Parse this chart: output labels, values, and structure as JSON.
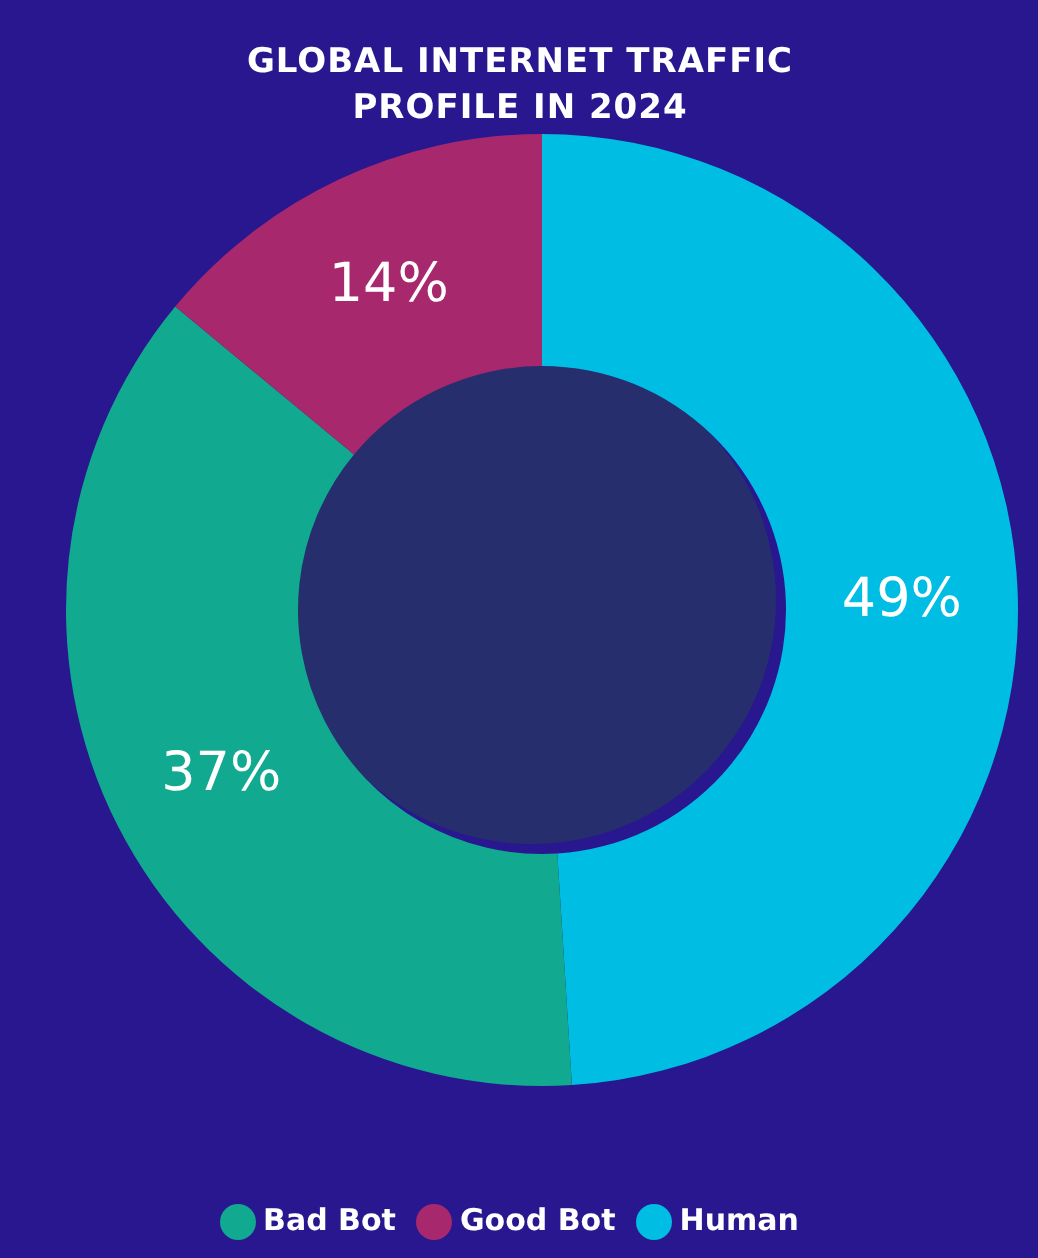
{
  "chart_data": {
    "type": "donut",
    "title": "GLOBAL INTERNET TRAFFIC PROFILE IN 2024",
    "categories": [
      "Human",
      "Bad Bot",
      "Good Bot"
    ],
    "values": [
      49,
      37,
      14
    ],
    "colors": [
      "#00bde3",
      "#11a98f",
      "#a8286e"
    ],
    "value_labels": [
      "49%",
      "37%",
      "14%"
    ],
    "legend": "bottom"
  }
}
